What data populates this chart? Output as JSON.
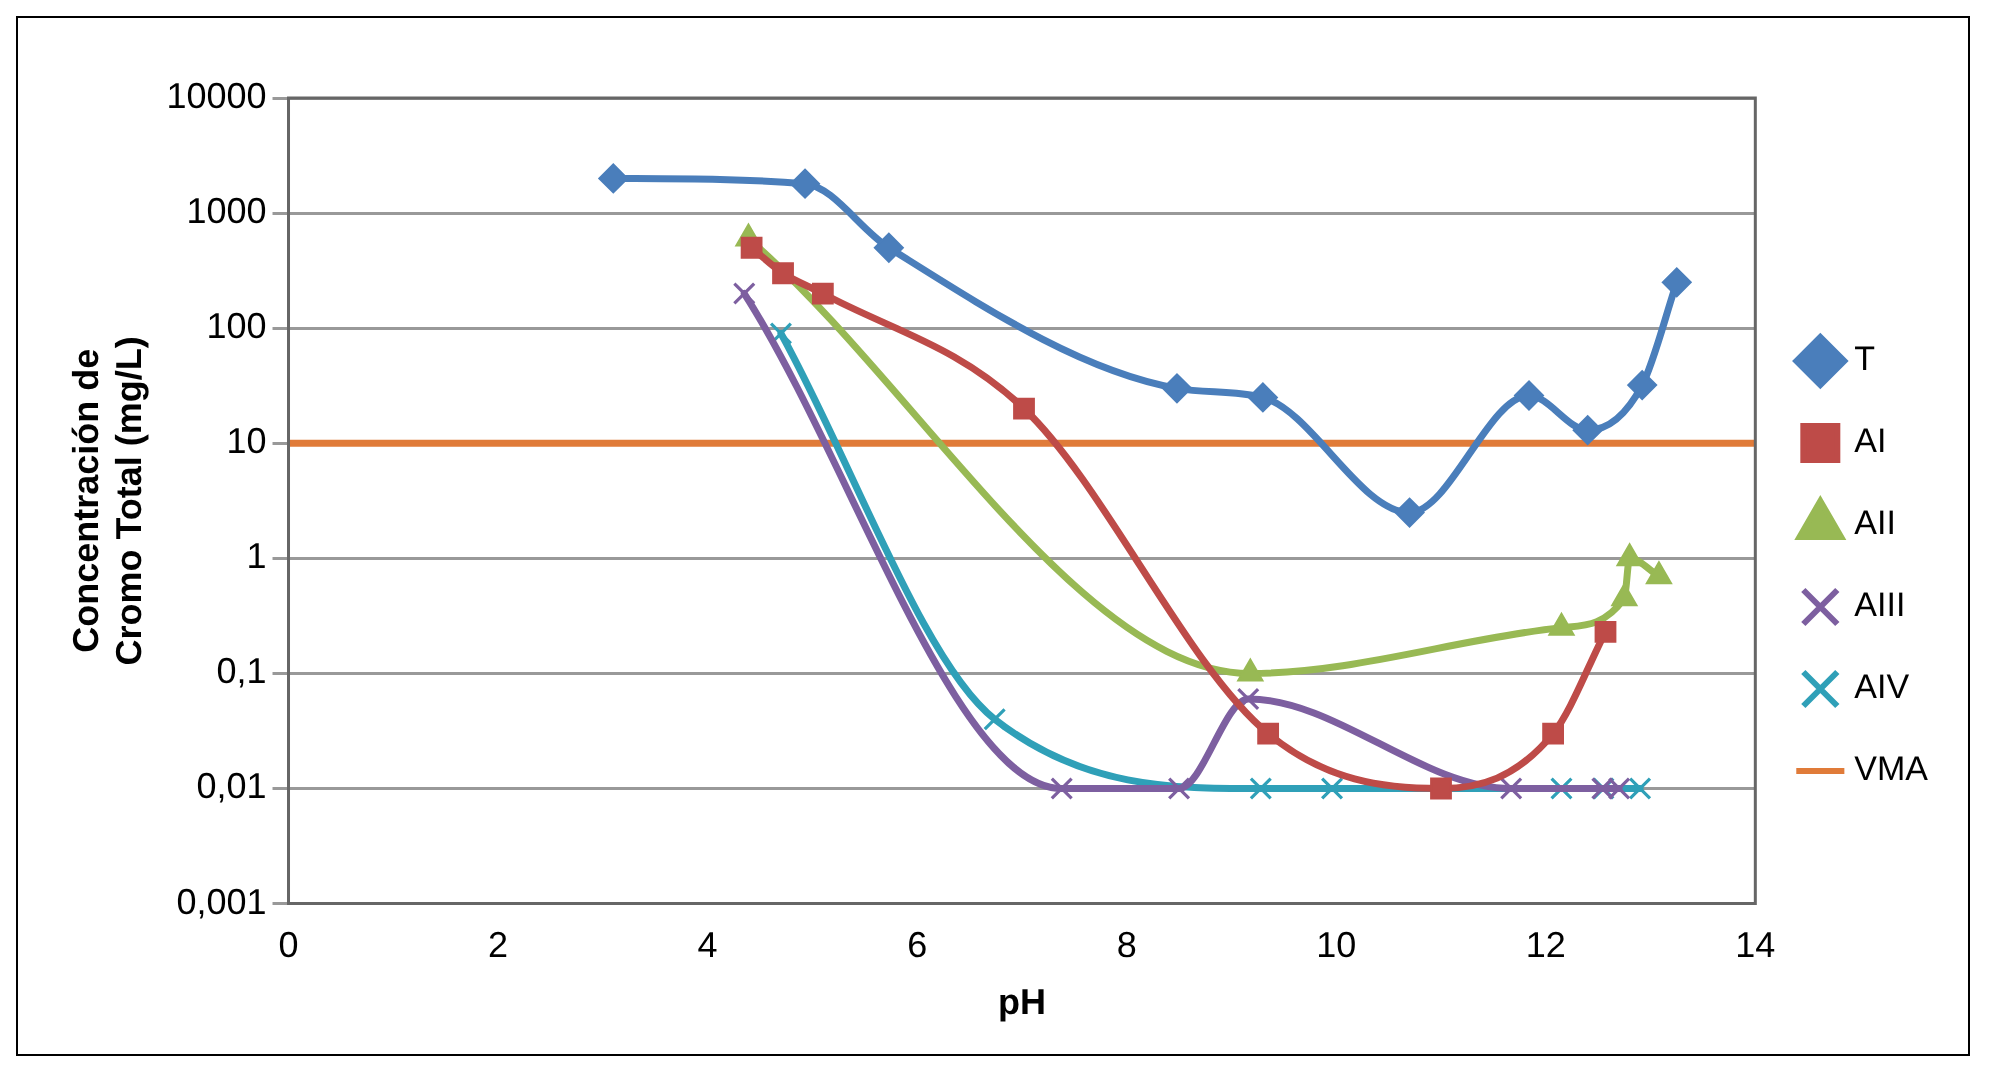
{
  "chart_data": {
    "type": "line",
    "xlabel": "pH",
    "ylabel": "Concentración de\nCromo Total (mg/L)",
    "xlim": [
      0,
      14
    ],
    "xticks": [
      0,
      2,
      4,
      6,
      8,
      10,
      12,
      14
    ],
    "ylim": [
      0.001,
      10000
    ],
    "yticks": [
      {
        "value": 0.001,
        "label": "0,001"
      },
      {
        "value": 0.01,
        "label": "0,01"
      },
      {
        "value": 0.1,
        "label": "0,1"
      },
      1,
      10,
      100,
      1000,
      10000
    ],
    "log": "y",
    "grid": "y",
    "legend": "right",
    "line_style": "solid",
    "series": [
      {
        "name": "T",
        "color": "#4a7ebb",
        "marker": "diamond",
        "x": [
          3.1,
          4.93,
          5.73,
          8.48,
          9.3,
          10.7,
          11.84,
          12.4,
          12.92,
          13.25
        ],
        "values": [
          2000,
          1800,
          500,
          30,
          25,
          2.5,
          26,
          13,
          32,
          250
        ]
      },
      {
        "name": "AI",
        "color": "#be4b48",
        "marker": "square",
        "x": [
          4.42,
          4.72,
          5.1,
          7.02,
          9.35,
          11.0,
          12.07,
          12.57
        ],
        "values": [
          500,
          300,
          200,
          20,
          0.03,
          0.01,
          0.03,
          0.23
        ]
      },
      {
        "name": "AII",
        "color": "#98b954",
        "marker": "triangle",
        "x": [
          4.39,
          9.18,
          12.15,
          12.75,
          12.8,
          13.08
        ],
        "values": [
          600,
          0.1,
          0.25,
          0.45,
          1,
          0.7
        ]
      },
      {
        "name": "AIII",
        "color": "#7d5fa0",
        "marker": "cross",
        "x": [
          4.35,
          7.38,
          8.5,
          9.16,
          11.67,
          12.54,
          12.7
        ],
        "values": [
          200,
          0.01,
          0.01,
          0.06,
          0.01,
          0.01,
          0.01
        ]
      },
      {
        "name": "AIV",
        "color": "#2fa0b8",
        "marker": "cross",
        "x": [
          4.7,
          6.74,
          9.28,
          9.96,
          12.15,
          12.55,
          12.9
        ],
        "values": [
          90,
          0.04,
          0.01,
          0.01,
          0.01,
          0.01,
          0.01
        ]
      },
      {
        "name": "VMA",
        "color": "#e07b39",
        "marker": "none",
        "x": [
          0,
          14
        ],
        "values": [
          10,
          10
        ]
      }
    ]
  }
}
